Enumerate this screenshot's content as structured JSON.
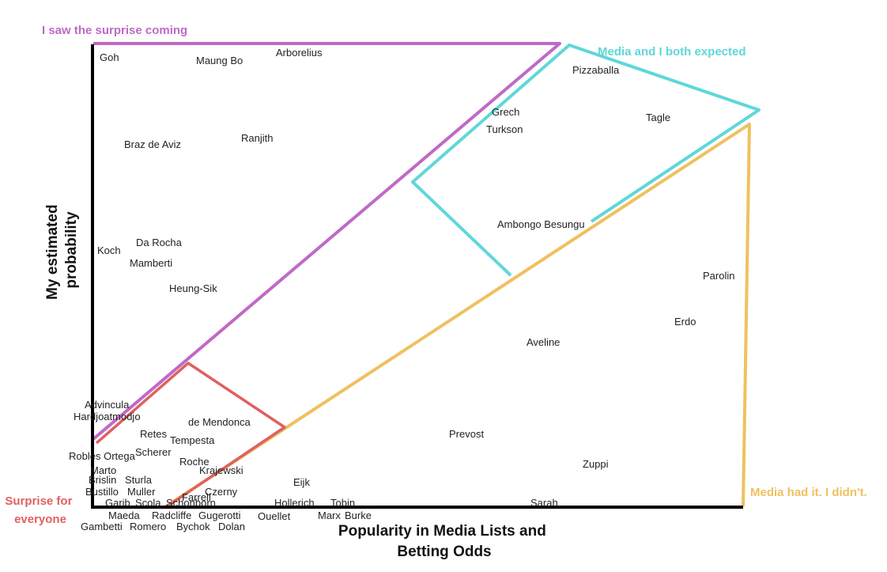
{
  "diagram": {
    "y_axis_label": [
      "My estimated",
      "probability"
    ],
    "x_axis_label": [
      "Popularity in Media Lists and",
      "Betting Odds"
    ],
    "regions": [
      {
        "id": "purple",
        "label": "I saw the surprise coming",
        "color": "#c069c7"
      },
      {
        "id": "cyan",
        "label": "Media and I both expected",
        "color": "#5fd7d9"
      },
      {
        "id": "orange",
        "label": "Media had it. I didn't.",
        "color": "#f0c060"
      },
      {
        "id": "red",
        "label": [
          "Surprise for",
          "everyone"
        ],
        "color": "#e06060"
      }
    ],
    "axis_color": "#000000",
    "names": [
      "Goh",
      "Maung Bo",
      "Arborelius",
      "Pizzaballa",
      "Grech",
      "Turkson",
      "Tagle",
      "Braz de Aviz",
      "Ranjith",
      "Ambongo Besungu",
      "Da Rocha",
      "Koch",
      "Mamberti",
      "Heung-Sik",
      "Parolin",
      "Erdo",
      "Aveline",
      "Advincula",
      "Hardjoatmodjo",
      "de Mendonca",
      "Retes",
      "Tempesta",
      "Prevost",
      "Scherer",
      "Robles Ortega",
      "Roche",
      "Zuppi",
      "Marto",
      "Krajewski",
      "Brislin",
      "Sturla",
      "Eijk",
      "Bustillo",
      "Muller",
      "Czerny",
      "Farrell",
      "Garib",
      "Scola",
      "Schonborn",
      "Hollerich",
      "Tobin",
      "Sarah",
      "Maeda",
      "Radcliffe",
      "Gugerotti",
      "Ouellet",
      "Marx",
      "Burke",
      "Gambetti",
      "Romero",
      "Bychok",
      "Dolan"
    ]
  }
}
